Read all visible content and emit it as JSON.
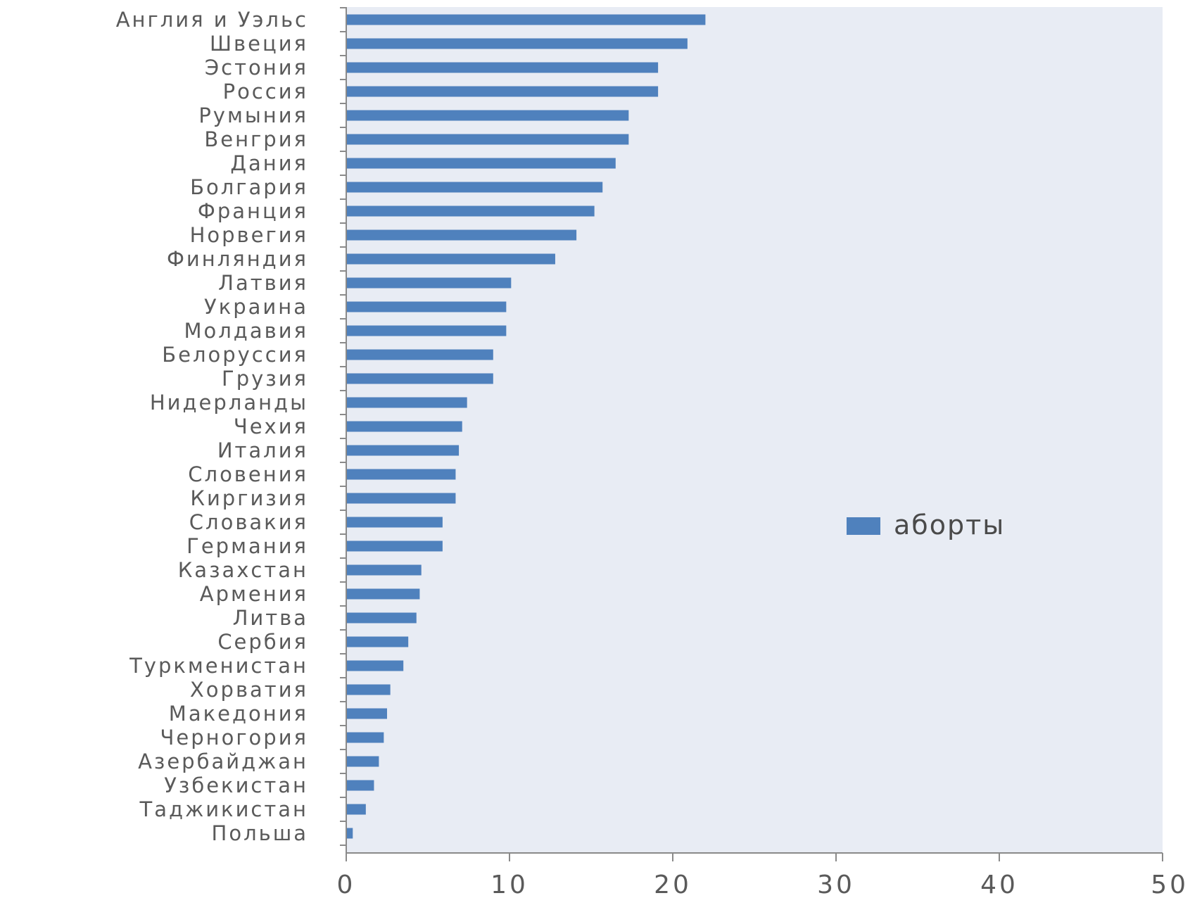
{
  "chart_data": {
    "type": "bar",
    "orientation": "horizontal",
    "categories": [
      "Англия и Уэльс",
      "Швеция",
      "Эстония",
      "Россия",
      "Румыния",
      "Венгрия",
      "Дания",
      "Болгария",
      "Франция",
      "Норвегия",
      "Финляндия",
      "Латвия",
      "Украина",
      "Молдавия",
      "Белоруссия",
      "Грузия",
      "Нидерланды",
      "Чехия",
      "Италия",
      "Словения",
      "Киргизия",
      "Словакия",
      "Германия",
      "Казахстан",
      "Армения",
      "Литва",
      "Сербия",
      "Туркменистан",
      "Хорватия",
      "Македония",
      "Черногория",
      "Азербайджан",
      "Узбекистан",
      "Таджикистан",
      "Польша"
    ],
    "series": [
      {
        "name": "аборты",
        "color": "#4f81bd",
        "values": [
          22.0,
          20.9,
          19.1,
          19.1,
          17.3,
          17.3,
          16.5,
          15.7,
          15.2,
          14.1,
          12.8,
          10.1,
          9.8,
          9.8,
          9.0,
          9.0,
          7.4,
          7.1,
          6.9,
          6.7,
          6.7,
          5.9,
          5.9,
          4.6,
          4.5,
          4.3,
          3.8,
          3.5,
          2.7,
          2.5,
          2.3,
          2.0,
          1.7,
          1.2,
          0.4
        ]
      }
    ],
    "xlim": [
      0,
      50
    ],
    "x_ticks": [
      "0",
      "10",
      "20",
      "30",
      "40",
      "50"
    ],
    "grid": false,
    "legend_position": "right",
    "plot_background": "#e8ecf4",
    "title": "",
    "xlabel": "",
    "ylabel": ""
  }
}
